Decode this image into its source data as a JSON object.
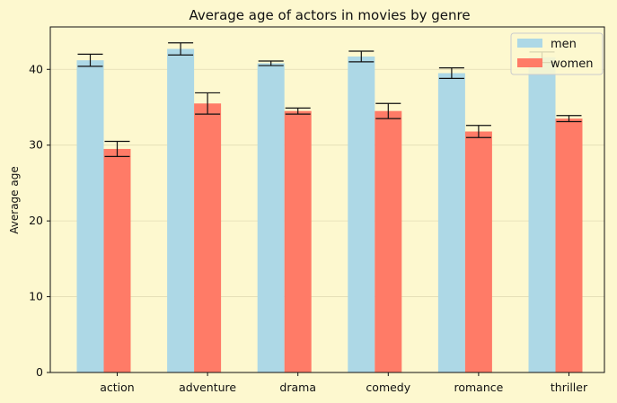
{
  "chart_data": {
    "type": "bar",
    "title": "Average age of actors in movies by genre",
    "xlabel": "",
    "ylabel": "Average age",
    "ylim": [
      0,
      45.6
    ],
    "yticks": [
      "0",
      "10",
      "20",
      "30",
      "40"
    ],
    "grid": true,
    "legend_position": "top-right",
    "categories": [
      "action",
      "adventure",
      "drama",
      "comedy",
      "romance",
      "thriller"
    ],
    "series": [
      {
        "name": "men",
        "color": "#add8e6",
        "values": [
          41.2,
          42.7,
          40.8,
          41.7,
          39.5,
          41.6
        ],
        "errors": [
          0.8,
          0.8,
          0.3,
          0.7,
          0.7,
          0.7
        ]
      },
      {
        "name": "women",
        "color": "#ff7b67",
        "values": [
          29.5,
          35.5,
          34.5,
          34.5,
          31.8,
          33.5
        ],
        "errors": [
          1.0,
          1.4,
          0.4,
          1.0,
          0.8,
          0.4
        ]
      }
    ]
  }
}
